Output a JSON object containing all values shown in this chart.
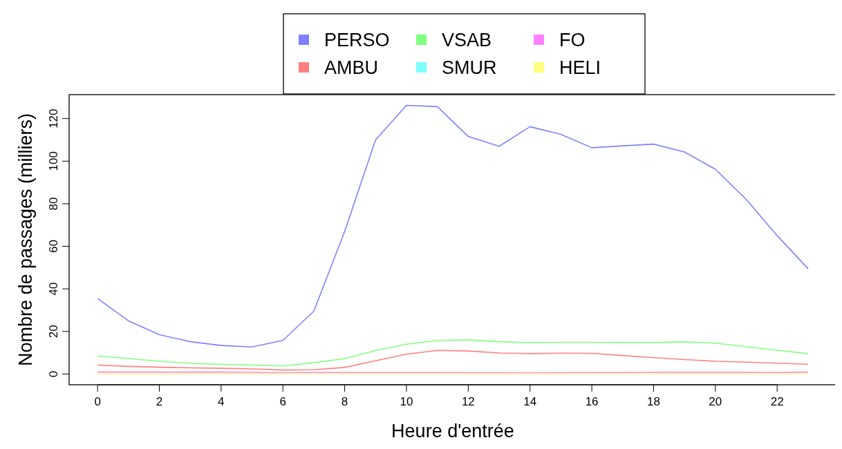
{
  "chart_data": {
    "type": "line",
    "xlabel": "Heure d'entrée",
    "ylabel": "Nombre de passages (milliers)",
    "x": [
      0,
      1,
      2,
      3,
      4,
      5,
      6,
      7,
      8,
      9,
      10,
      11,
      12,
      13,
      14,
      15,
      16,
      17,
      18,
      19,
      20,
      21,
      22,
      23
    ],
    "series": [
      {
        "name": "PERSO",
        "color": "#8080ff",
        "values": [
          35.5,
          25,
          18.5,
          15.2,
          13.4,
          12.7,
          15.8,
          29.5,
          67,
          110,
          126.2,
          125.6,
          111.6,
          107,
          116.2,
          112.6,
          106.3,
          107.2,
          108,
          104.3,
          96.2,
          82,
          65,
          49.5
        ]
      },
      {
        "name": "AMBU",
        "color": "#ff8080",
        "values": [
          4.2,
          3.6,
          3.2,
          2.9,
          2.7,
          2.4,
          1.9,
          2,
          3.1,
          6.2,
          9.3,
          11.1,
          10.8,
          9.9,
          9.6,
          9.8,
          9.7,
          8.7,
          7.7,
          6.8,
          6,
          5.6,
          5.1,
          4.6
        ]
      },
      {
        "name": "VSAB",
        "color": "#80ff80",
        "values": [
          8.5,
          7.3,
          6,
          5,
          4.5,
          4.2,
          3.8,
          5.3,
          7.2,
          11,
          14,
          15.8,
          16,
          15.2,
          14.7,
          14.9,
          14.9,
          14.8,
          14.8,
          15.1,
          14.5,
          12.8,
          11.2,
          9.6
        ]
      },
      {
        "name": "SMUR",
        "color": "#80ffff",
        "values": [
          null,
          null,
          null,
          null,
          null,
          null,
          null,
          null,
          null,
          null,
          null,
          null,
          null,
          null,
          null,
          null,
          null,
          null,
          null,
          null,
          null,
          null,
          null,
          null
        ]
      },
      {
        "name": "FO",
        "color": "#ff80ff",
        "values": [
          0.9,
          0.9,
          0.9,
          0.9,
          0.9,
          0.8,
          0.5,
          0.7,
          0.7,
          0.7,
          0.7,
          0.7,
          0.6,
          0.6,
          0.5,
          0.6,
          0.7,
          0.7,
          0.8,
          0.8,
          0.8,
          0.8,
          0.7,
          0.9
        ]
      },
      {
        "name": "HELI",
        "color": "#ffff80",
        "values": [
          0.1,
          0.1,
          0.1,
          0.1,
          0.1,
          0.1,
          0.1,
          0.1,
          0.1,
          0.1,
          0.1,
          0.1,
          0.1,
          0.1,
          0.1,
          0.1,
          0.1,
          0.1,
          0.1,
          0.1,
          0.1,
          0.1,
          0.1,
          0.1
        ]
      }
    ],
    "xlim": [
      -0.92,
      23.92
    ],
    "ylim": [
      -5.05,
      131.25
    ],
    "xticks": [
      0,
      2,
      4,
      6,
      8,
      10,
      12,
      14,
      16,
      18,
      20,
      22
    ],
    "yticks": [
      0,
      20,
      40,
      60,
      80,
      100,
      120
    ],
    "legend": "top",
    "grid": false,
    "marker": "none",
    "line_style": "solid"
  }
}
